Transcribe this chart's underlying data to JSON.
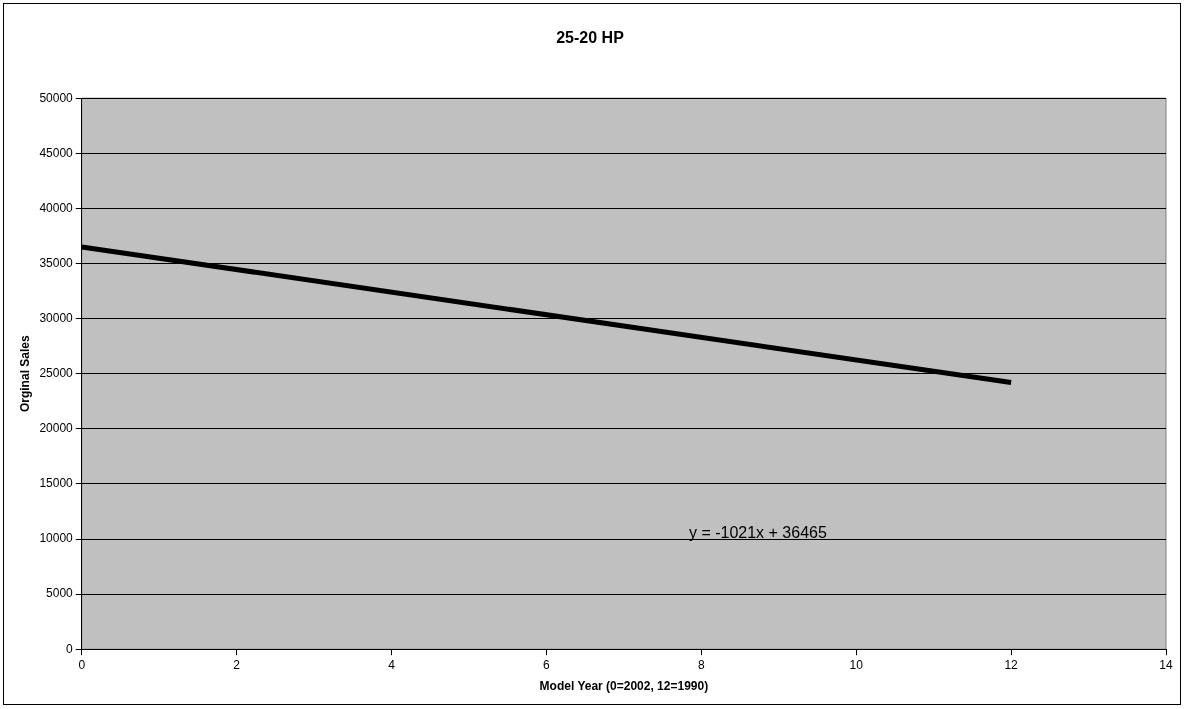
{
  "chart_data": {
    "type": "line",
    "title": "25-20 HP",
    "xlabel": "Model Year (0=2002, 12=1990)",
    "ylabel": "Orginal Sales",
    "x": [
      0,
      12
    ],
    "series": [
      {
        "color": "#000000",
        "values": [
          36500,
          24200
        ]
      }
    ],
    "xlim": [
      0,
      14
    ],
    "xticks": [
      0,
      2,
      4,
      6,
      8,
      10,
      12,
      14
    ],
    "ylim": [
      0,
      50000
    ],
    "yticks": [
      0,
      5000,
      10000,
      15000,
      20000,
      25000,
      30000,
      35000,
      40000,
      45000,
      50000
    ],
    "grid": "y",
    "legend": false,
    "marker": "none",
    "line_style": "solid",
    "annotations": [
      "y = -1021x + 36465"
    ]
  }
}
